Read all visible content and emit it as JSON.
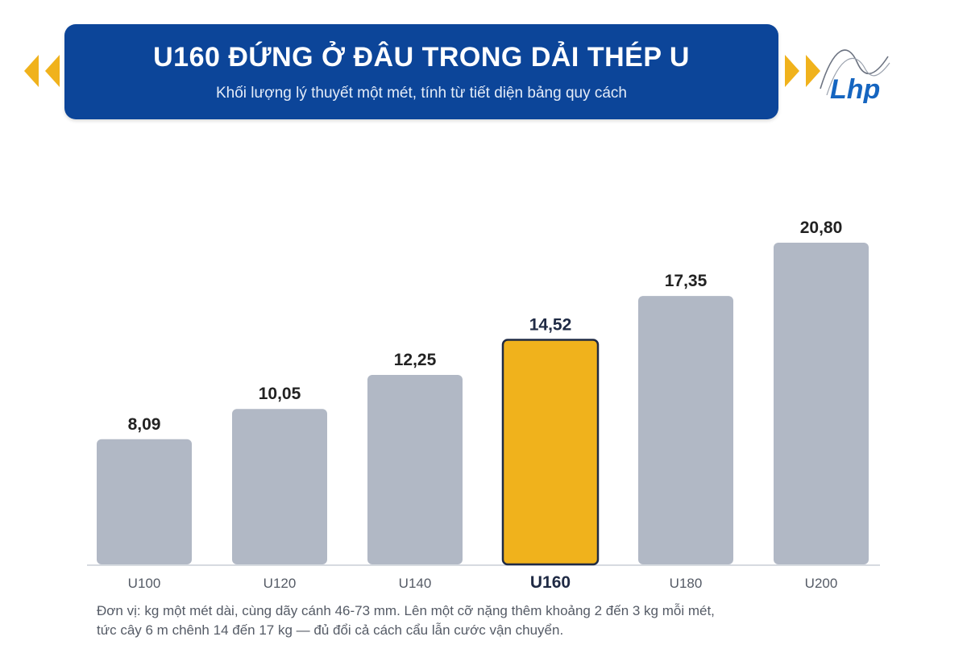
{
  "header": {
    "title": "U160 ĐỨNG Ở ĐÂU TRONG DẢI THÉP U",
    "subtitle": "Khối lượng lý thuyết một mét, tính từ tiết diện bảng quy cách"
  },
  "logo": {
    "text": "Lhp",
    "icon": "lhp-logo-icon"
  },
  "colors": {
    "header_bg": "#0c4599",
    "bar": "#b1b8c5",
    "highlight": "#f0b21c",
    "highlight_border": "#1f2a44",
    "arrow": "#f0b21c",
    "logo_blue": "#1565c0"
  },
  "chart_data": {
    "type": "bar",
    "categories": [
      "U100",
      "U120",
      "U140",
      "U160",
      "U180",
      "U200"
    ],
    "values": [
      8.09,
      10.05,
      12.25,
      14.52,
      17.35,
      20.8
    ],
    "value_labels": [
      "8,09",
      "10,05",
      "12,25",
      "14,52",
      "17,35",
      "20,80"
    ],
    "highlight": "U160",
    "ylim": [
      0,
      24.5
    ],
    "grid": false,
    "title": "",
    "xlabel": "",
    "ylabel": ""
  },
  "footnote": {
    "line1": "Đơn vị: kg một mét dài, cùng dãy cánh 46-73 mm. Lên một cỡ nặng thêm khoảng 2 đến 3 kg mỗi mét,",
    "line2": "tức cây 6 m chênh 14 đến 17 kg — đủ đổi cả cách cẩu lẫn cước vận chuyển."
  }
}
